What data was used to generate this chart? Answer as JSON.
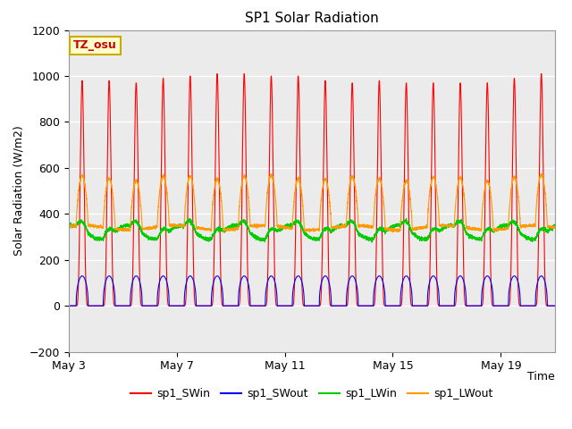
{
  "title": "SP1 Solar Radiation",
  "ylabel": "Solar Radiation (W/m2)",
  "xlabel": "Time",
  "ylim": [
    -200,
    1200
  ],
  "yticks": [
    -200,
    0,
    200,
    400,
    600,
    800,
    1000,
    1200
  ],
  "xtick_labels": [
    "May 3",
    "May 7",
    "May 11",
    "May 15",
    "May 19"
  ],
  "tz_label": "TZ_osu",
  "background_color": "#ffffff",
  "plot_bg_color": "#ebebeb",
  "grid_color": "#ffffff",
  "colors": {
    "sp1_SWin": "#ff0000",
    "sp1_SWout": "#0000ff",
    "sp1_LWin": "#00cc00",
    "sp1_LWout": "#ff9900"
  },
  "n_days": 18,
  "samples_per_day": 288,
  "title_fontsize": 11,
  "label_fontsize": 9,
  "tick_fontsize": 9
}
